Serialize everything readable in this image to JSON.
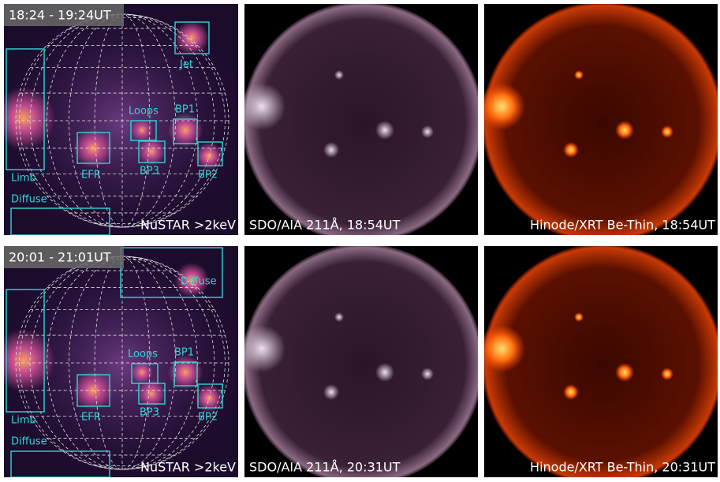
{
  "rows": [
    {
      "time": "18:24 - 19:24UT",
      "nustar": "NuSTAR >2keV",
      "regions": [
        "Jet",
        "Limb",
        "Loops",
        "BP1",
        "EFR",
        "BP3",
        "BP2",
        "Diffuse"
      ],
      "aia": "SDO/AIA 211Å, 18:54UT",
      "xrt": "Hinode/XRT Be-Thin, 18:54UT"
    },
    {
      "time": "20:01 - 21:01UT",
      "nustar": "NuSTAR >2keV",
      "regions": [
        "Diffuse",
        "Loops",
        "BP1",
        "Limb",
        "EFR",
        "BP3",
        "BP2",
        "Diffuse"
      ],
      "aia": "SDO/AIA 211Å, 20:31UT",
      "xrt": "Hinode/XRT Be-Thin, 20:31UT"
    }
  ]
}
